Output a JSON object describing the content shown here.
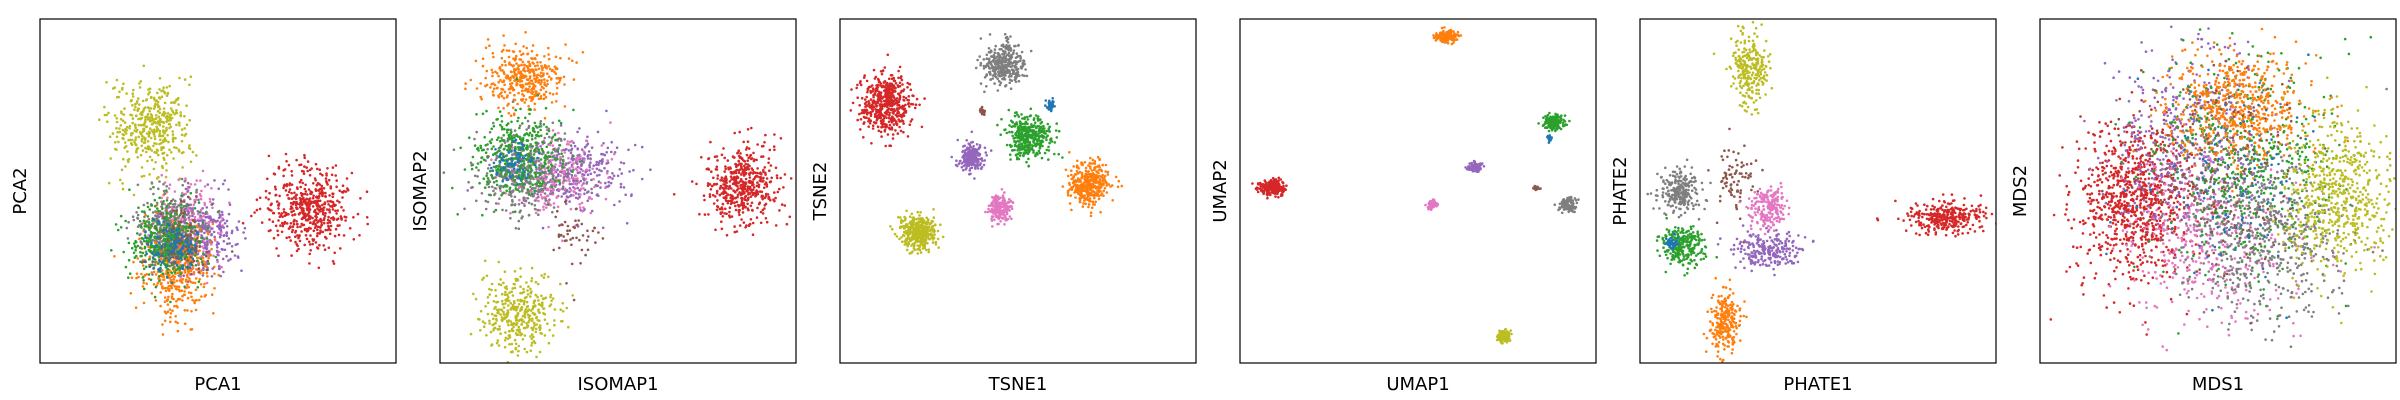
{
  "chart_data": [
    {
      "type": "scatter",
      "xlabel": "PCA1",
      "ylabel": "PCA2",
      "xlim": [
        0,
        10
      ],
      "ylim": [
        0,
        10
      ],
      "ticks": "none",
      "clusters": [
        {
          "color": "#bcbd22",
          "cx": 3.1,
          "cy": 6.9,
          "sx": 0.55,
          "sy": 0.65,
          "n": 420
        },
        {
          "color": "#e377c2",
          "cx": 4.1,
          "cy": 3.9,
          "sx": 0.5,
          "sy": 0.6,
          "n": 300
        },
        {
          "color": "#9467bd",
          "cx": 4.6,
          "cy": 3.8,
          "sx": 0.5,
          "sy": 0.55,
          "n": 260
        },
        {
          "color": "#ff7f0e",
          "cx": 3.8,
          "cy": 2.8,
          "sx": 0.5,
          "sy": 0.7,
          "n": 420
        },
        {
          "color": "#7f7f7f",
          "cx": 3.6,
          "cy": 3.9,
          "sx": 0.45,
          "sy": 0.55,
          "n": 300
        },
        {
          "color": "#2ca02c",
          "cx": 3.5,
          "cy": 3.5,
          "sx": 0.5,
          "sy": 0.6,
          "n": 380
        },
        {
          "color": "#8c564b",
          "cx": 3.9,
          "cy": 3.6,
          "sx": 0.4,
          "sy": 0.5,
          "n": 120
        },
        {
          "color": "#1f77b4",
          "cx": 3.7,
          "cy": 3.3,
          "sx": 0.4,
          "sy": 0.4,
          "n": 120
        },
        {
          "color": "#d62728",
          "cx": 7.6,
          "cy": 4.5,
          "sx": 0.6,
          "sy": 0.6,
          "n": 520
        }
      ]
    },
    {
      "type": "scatter",
      "xlabel": "ISOMAP1",
      "ylabel": "ISOMAP2",
      "xlim": [
        0,
        10
      ],
      "ylim": [
        0,
        10
      ],
      "ticks": "none",
      "clusters": [
        {
          "color": "#ff7f0e",
          "cx": 2.4,
          "cy": 8.3,
          "sx": 0.55,
          "sy": 0.45,
          "n": 380
        },
        {
          "color": "#9467bd",
          "cx": 3.8,
          "cy": 5.6,
          "sx": 0.8,
          "sy": 0.55,
          "n": 320
        },
        {
          "color": "#e377c2",
          "cx": 3.2,
          "cy": 5.4,
          "sx": 0.7,
          "sy": 0.6,
          "n": 260
        },
        {
          "color": "#7f7f7f",
          "cx": 2.3,
          "cy": 5.5,
          "sx": 0.7,
          "sy": 0.65,
          "n": 360
        },
        {
          "color": "#2ca02c",
          "cx": 2.2,
          "cy": 6.0,
          "sx": 0.6,
          "sy": 0.6,
          "n": 380
        },
        {
          "color": "#1f77b4",
          "cx": 2.0,
          "cy": 5.8,
          "sx": 0.3,
          "sy": 0.3,
          "n": 80
        },
        {
          "color": "#8c564b",
          "cx": 3.8,
          "cy": 3.8,
          "sx": 0.4,
          "sy": 0.5,
          "n": 50
        },
        {
          "color": "#bcbd22",
          "cx": 2.2,
          "cy": 1.4,
          "sx": 0.55,
          "sy": 0.55,
          "n": 380
        },
        {
          "color": "#d62728",
          "cx": 8.5,
          "cy": 5.2,
          "sx": 0.5,
          "sy": 0.6,
          "n": 480
        }
      ]
    },
    {
      "type": "scatter",
      "xlabel": "TSNE1",
      "ylabel": "TSNE2",
      "xlim": [
        0,
        10
      ],
      "ylim": [
        0,
        10
      ],
      "ticks": "none",
      "clusters": [
        {
          "color": "#d62728",
          "cx": 1.3,
          "cy": 7.5,
          "sx": 0.35,
          "sy": 0.42,
          "n": 520
        },
        {
          "color": "#7f7f7f",
          "cx": 4.6,
          "cy": 8.7,
          "sx": 0.28,
          "sy": 0.3,
          "n": 360
        },
        {
          "color": "#2ca02c",
          "cx": 5.3,
          "cy": 6.6,
          "sx": 0.3,
          "sy": 0.3,
          "n": 380
        },
        {
          "color": "#9467bd",
          "cx": 3.7,
          "cy": 6.0,
          "sx": 0.18,
          "sy": 0.2,
          "n": 200
        },
        {
          "color": "#e377c2",
          "cx": 4.5,
          "cy": 4.5,
          "sx": 0.16,
          "sy": 0.2,
          "n": 200
        },
        {
          "color": "#ff7f0e",
          "cx": 7.0,
          "cy": 5.2,
          "sx": 0.28,
          "sy": 0.3,
          "n": 380
        },
        {
          "color": "#bcbd22",
          "cx": 2.2,
          "cy": 3.8,
          "sx": 0.26,
          "sy": 0.25,
          "n": 380
        },
        {
          "color": "#1f77b4",
          "cx": 5.9,
          "cy": 7.5,
          "sx": 0.06,
          "sy": 0.08,
          "n": 40
        },
        {
          "color": "#8c564b",
          "cx": 4.0,
          "cy": 7.3,
          "sx": 0.03,
          "sy": 0.05,
          "n": 25
        }
      ]
    },
    {
      "type": "scatter",
      "xlabel": "UMAP1",
      "ylabel": "UMAP2",
      "xlim": [
        0,
        10
      ],
      "ylim": [
        0,
        10
      ],
      "ticks": "none",
      "clusters": [
        {
          "color": "#ff7f0e",
          "cx": 5.8,
          "cy": 9.5,
          "sx": 0.15,
          "sy": 0.08,
          "n": 160
        },
        {
          "color": "#2ca02c",
          "cx": 8.8,
          "cy": 7.0,
          "sx": 0.14,
          "sy": 0.12,
          "n": 160
        },
        {
          "color": "#1f77b4",
          "cx": 8.7,
          "cy": 6.5,
          "sx": 0.04,
          "sy": 0.05,
          "n": 25
        },
        {
          "color": "#d62728",
          "cx": 0.9,
          "cy": 5.1,
          "sx": 0.18,
          "sy": 0.1,
          "n": 260
        },
        {
          "color": "#9467bd",
          "cx": 6.6,
          "cy": 5.7,
          "sx": 0.1,
          "sy": 0.07,
          "n": 90
        },
        {
          "color": "#e377c2",
          "cx": 5.4,
          "cy": 4.6,
          "sx": 0.07,
          "sy": 0.06,
          "n": 70
        },
        {
          "color": "#8c564b",
          "cx": 8.3,
          "cy": 5.1,
          "sx": 0.05,
          "sy": 0.03,
          "n": 20
        },
        {
          "color": "#7f7f7f",
          "cx": 9.2,
          "cy": 4.6,
          "sx": 0.12,
          "sy": 0.1,
          "n": 120
        },
        {
          "color": "#bcbd22",
          "cx": 7.4,
          "cy": 0.8,
          "sx": 0.1,
          "sy": 0.1,
          "n": 100
        }
      ]
    },
    {
      "type": "scatter",
      "xlabel": "PHATE1",
      "ylabel": "PHATE2",
      "xlim": [
        0,
        10
      ],
      "ylim": [
        0,
        10
      ],
      "ticks": "none",
      "clusters": [
        {
          "color": "#bcbd22",
          "cx": 3.1,
          "cy": 8.6,
          "sx": 0.25,
          "sy": 0.55,
          "n": 260
        },
        {
          "color": "#8c564b",
          "cx": 2.7,
          "cy": 5.4,
          "sx": 0.3,
          "sy": 0.5,
          "n": 80
        },
        {
          "color": "#7f7f7f",
          "cx": 1.1,
          "cy": 5.0,
          "sx": 0.3,
          "sy": 0.3,
          "n": 240
        },
        {
          "color": "#e377c2",
          "cx": 3.6,
          "cy": 4.5,
          "sx": 0.25,
          "sy": 0.3,
          "n": 200
        },
        {
          "color": "#9467bd",
          "cx": 3.6,
          "cy": 3.3,
          "sx": 0.45,
          "sy": 0.25,
          "n": 240
        },
        {
          "color": "#2ca02c",
          "cx": 1.2,
          "cy": 3.4,
          "sx": 0.28,
          "sy": 0.3,
          "n": 260
        },
        {
          "color": "#1f77b4",
          "cx": 0.9,
          "cy": 3.5,
          "sx": 0.1,
          "sy": 0.12,
          "n": 40
        },
        {
          "color": "#ff7f0e",
          "cx": 2.4,
          "cy": 1.2,
          "sx": 0.2,
          "sy": 0.45,
          "n": 240
        },
        {
          "color": "#d62728",
          "cx": 8.6,
          "cy": 4.2,
          "sx": 0.55,
          "sy": 0.22,
          "n": 320
        }
      ]
    },
    {
      "type": "scatter",
      "xlabel": "MDS1",
      "ylabel": "MDS2",
      "xlim": [
        0,
        10
      ],
      "ylim": [
        0,
        10
      ],
      "ticks": "none",
      "clusters": [
        {
          "color": "#d62728",
          "cx": 2.7,
          "cy": 4.8,
          "sx": 0.8,
          "sy": 1.1,
          "n": 900
        },
        {
          "color": "#9467bd",
          "cx": 4.2,
          "cy": 6.5,
          "sx": 1.1,
          "sy": 1.5,
          "n": 500
        },
        {
          "color": "#e377c2",
          "cx": 4.9,
          "cy": 3.6,
          "sx": 1.2,
          "sy": 1.2,
          "n": 450
        },
        {
          "color": "#2ca02c",
          "cx": 5.8,
          "cy": 5.8,
          "sx": 1.3,
          "sy": 1.5,
          "n": 550
        },
        {
          "color": "#7f7f7f",
          "cx": 6.3,
          "cy": 3.6,
          "sx": 1.1,
          "sy": 1.2,
          "n": 550
        },
        {
          "color": "#ff7f0e",
          "cx": 5.5,
          "cy": 7.5,
          "sx": 1.0,
          "sy": 0.8,
          "n": 600
        },
        {
          "color": "#8c564b",
          "cx": 5.0,
          "cy": 5.5,
          "sx": 1.2,
          "sy": 1.4,
          "n": 200
        },
        {
          "color": "#1f77b4",
          "cx": 5.5,
          "cy": 5.0,
          "sx": 1.2,
          "sy": 1.4,
          "n": 120
        },
        {
          "color": "#bcbd22",
          "cx": 8.4,
          "cy": 4.9,
          "sx": 0.75,
          "sy": 1.1,
          "n": 600
        }
      ]
    }
  ]
}
